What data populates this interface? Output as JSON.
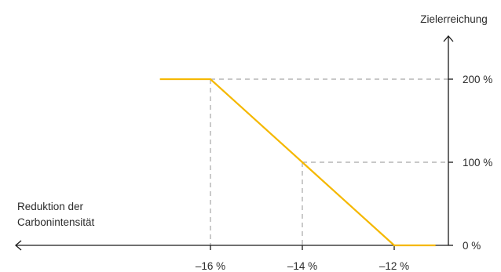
{
  "chart_data": {
    "type": "line",
    "ylabel": "Zielerreichung",
    "xlabel_lines": [
      "Reduktion der",
      "Carbonintensität"
    ],
    "x_direction": "reversed",
    "x_ticks": [
      -16,
      -14,
      -12
    ],
    "x_tick_labels": [
      "–16 %",
      "–14 %",
      "–12 %"
    ],
    "y_ticks": [
      0,
      100,
      200
    ],
    "y_tick_labels": [
      "0 %",
      "100 %",
      "200 %"
    ],
    "series": [
      {
        "color": "#f5b800",
        "points": [
          {
            "x": -17.1,
            "y": 200
          },
          {
            "x": -16,
            "y": 200
          },
          {
            "x": -14,
            "y": 100
          },
          {
            "x": -12,
            "y": 0
          },
          {
            "x": -11.1,
            "y": 0
          }
        ]
      }
    ],
    "reference_points": [
      {
        "x": -16,
        "y": 200
      },
      {
        "x": -14,
        "y": 100
      }
    ],
    "reference_line_color": "#a6a6a6",
    "axis_color": "#1a1a1a"
  }
}
